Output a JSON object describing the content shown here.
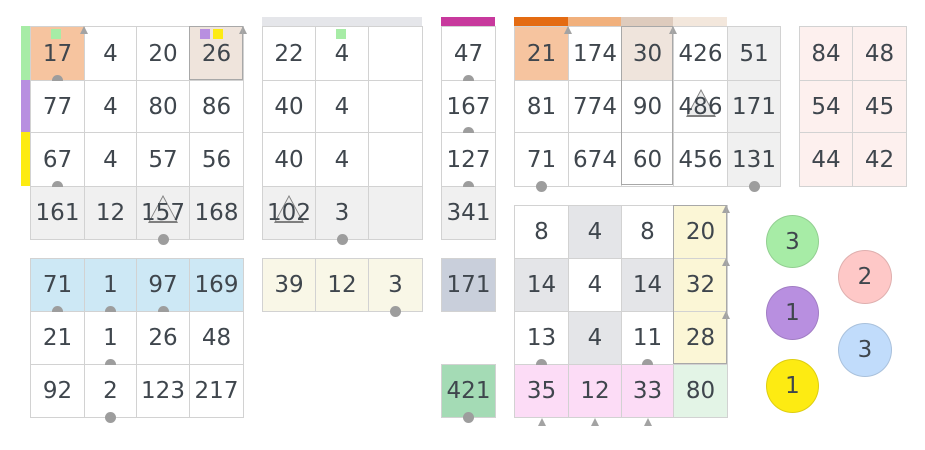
{
  "puzzles": {
    "a": [
      "17",
      "4",
      "20",
      "26",
      "77",
      "4",
      "80",
      "86",
      "67",
      "4",
      "57",
      "56",
      "161",
      "12",
      "157",
      "168"
    ],
    "b": [
      "22",
      "4",
      "",
      "40",
      "4",
      "",
      "40",
      "4",
      "",
      "102",
      "3",
      ""
    ],
    "c": [
      "47",
      "167",
      "127",
      "341"
    ],
    "d": [
      "21",
      "174",
      "30",
      "426",
      "51",
      "81",
      "774",
      "90",
      "486",
      "171",
      "71",
      "674",
      "60",
      "456",
      "131"
    ],
    "e": [
      "84",
      "48",
      "54",
      "45",
      "44",
      "42"
    ],
    "f": [
      "71",
      "1",
      "97",
      "169",
      "21",
      "1",
      "26",
      "48",
      "92",
      "2",
      "123",
      "217"
    ],
    "g": [
      "39",
      "12",
      "3"
    ],
    "h": [
      "171"
    ],
    "i": [
      "421"
    ],
    "j": [
      "8",
      "4",
      "8",
      "20",
      "14",
      "4",
      "14",
      "32",
      "13",
      "4",
      "11",
      "28",
      "35",
      "12",
      "33",
      "80"
    ]
  },
  "discs": [
    {
      "value": "3",
      "color": "#a7eca6"
    },
    {
      "value": "2",
      "color": "#fec8c7"
    },
    {
      "value": "1",
      "color": "#b88fe0"
    },
    {
      "value": "3",
      "color": "#c1dcfb"
    },
    {
      "value": "1",
      "color": "#fdeb12"
    }
  ],
  "colors": {
    "green": "#a7eca6",
    "purple": "#b88fe0",
    "yellow": "#fdeb12",
    "magenta": "#c8399d",
    "orange": "#e46b12"
  }
}
